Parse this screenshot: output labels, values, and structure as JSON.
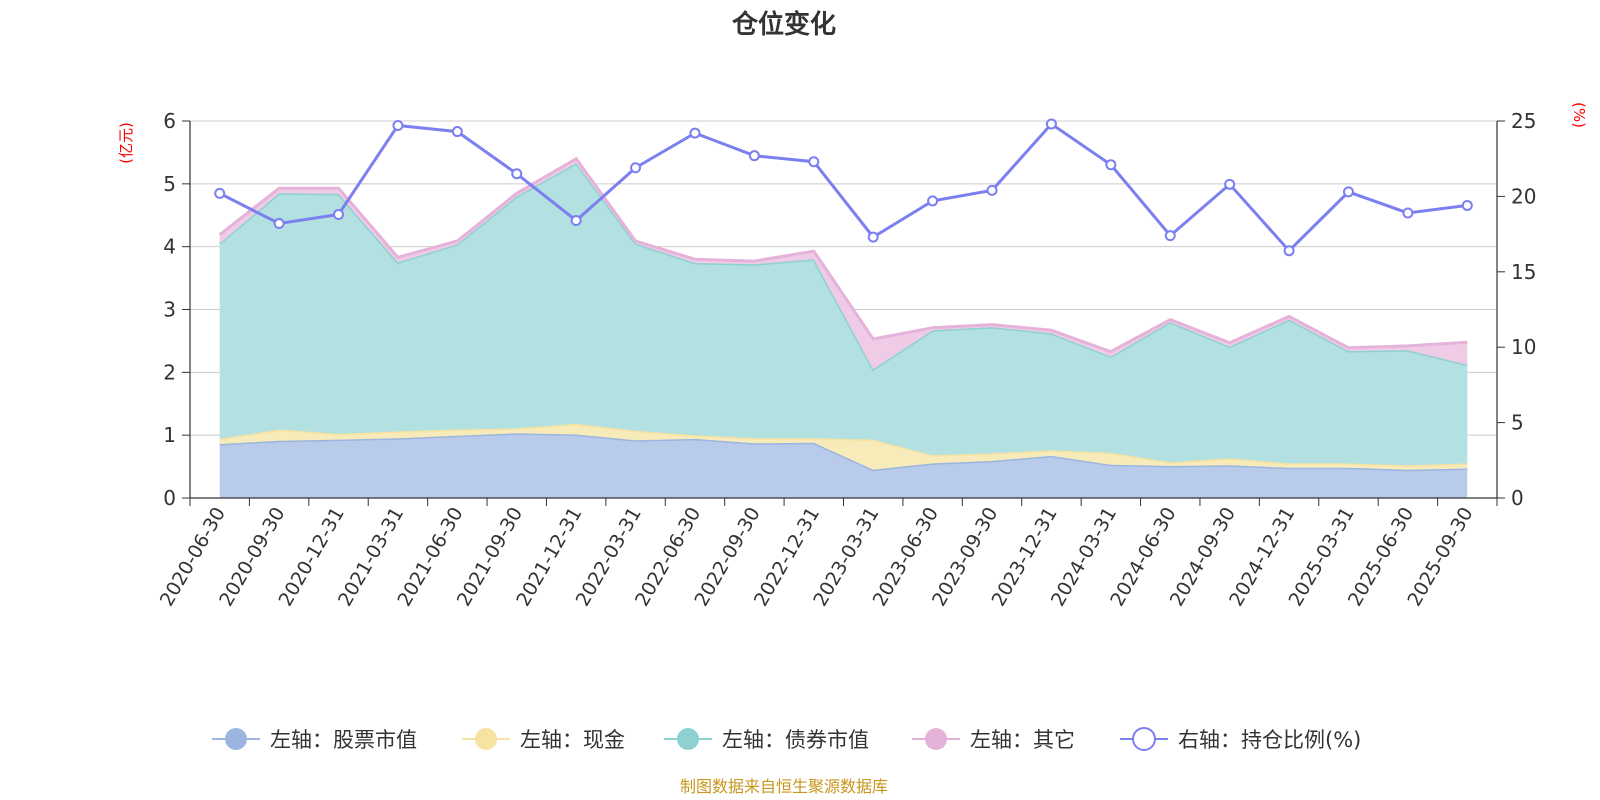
{
  "chart_data": {
    "type": "area",
    "title": "仓位变化",
    "left_axis_unit": "(亿元)",
    "right_axis_unit": "(%)",
    "left_ylim": [
      0,
      6
    ],
    "left_ticks": [
      "0",
      "1",
      "2",
      "3",
      "4",
      "5",
      "6"
    ],
    "right_ylim": [
      0,
      25
    ],
    "right_ticks": [
      "0",
      "5",
      "10",
      "15",
      "20",
      "25"
    ],
    "categories": [
      "2020-06-30",
      "2020-09-30",
      "2020-12-31",
      "2021-03-31",
      "2021-06-30",
      "2021-09-30",
      "2021-12-31",
      "2022-03-31",
      "2022-06-30",
      "2022-09-30",
      "2022-12-31",
      "2023-03-31",
      "2023-06-30",
      "2023-09-30",
      "2023-12-31",
      "2024-03-31",
      "2024-06-30",
      "2024-09-30",
      "2024-12-31",
      "2025-03-31",
      "2025-06-30",
      "2025-09-30"
    ],
    "stacked_series": [
      {
        "name": "左轴：股票市值",
        "color": "#9bb5e0",
        "fill": "#b8cbea",
        "values": [
          0.86,
          0.91,
          0.93,
          0.95,
          0.99,
          1.03,
          1.01,
          0.92,
          0.94,
          0.87,
          0.88,
          0.45,
          0.55,
          0.59,
          0.67,
          0.53,
          0.51,
          0.52,
          0.48,
          0.48,
          0.45,
          0.47
        ]
      },
      {
        "name": "左轴：现金",
        "color": "#f7e3a1",
        "fill": "#f8ebba",
        "values": [
          0.08,
          0.18,
          0.09,
          0.11,
          0.1,
          0.08,
          0.17,
          0.15,
          0.06,
          0.08,
          0.07,
          0.48,
          0.13,
          0.12,
          0.09,
          0.19,
          0.06,
          0.11,
          0.07,
          0.07,
          0.07,
          0.08
        ]
      },
      {
        "name": "左轴：债券市值",
        "color": "#8dd1d1",
        "fill": "#b3e0e0",
        "values": [
          3.11,
          3.76,
          3.82,
          2.69,
          2.95,
          3.69,
          4.15,
          2.98,
          2.74,
          2.77,
          2.85,
          1.12,
          1.99,
          2.01,
          1.86,
          1.53,
          2.23,
          1.78,
          2.29,
          1.79,
          1.83,
          1.57
        ]
      },
      {
        "name": "左轴：其它",
        "color": "#e5b3da",
        "fill": "#efcbe6",
        "values": [
          0.14,
          0.08,
          0.09,
          0.08,
          0.05,
          0.05,
          0.07,
          0.04,
          0.06,
          0.05,
          0.13,
          0.48,
          0.04,
          0.04,
          0.05,
          0.08,
          0.04,
          0.06,
          0.05,
          0.05,
          0.07,
          0.36
        ]
      }
    ],
    "line_series": {
      "name": "右轴：持仓比例(%)",
      "color": "#7b7ff0",
      "values": [
        20.2,
        18.2,
        18.8,
        24.7,
        24.3,
        21.5,
        18.4,
        21.9,
        24.2,
        22.7,
        22.3,
        17.3,
        19.7,
        20.4,
        24.8,
        22.1,
        17.4,
        20.8,
        16.4,
        20.3,
        18.9,
        19.4
      ]
    },
    "legend_position": "bottom-center",
    "source_note": "制图数据来自恒生聚源数据库"
  }
}
